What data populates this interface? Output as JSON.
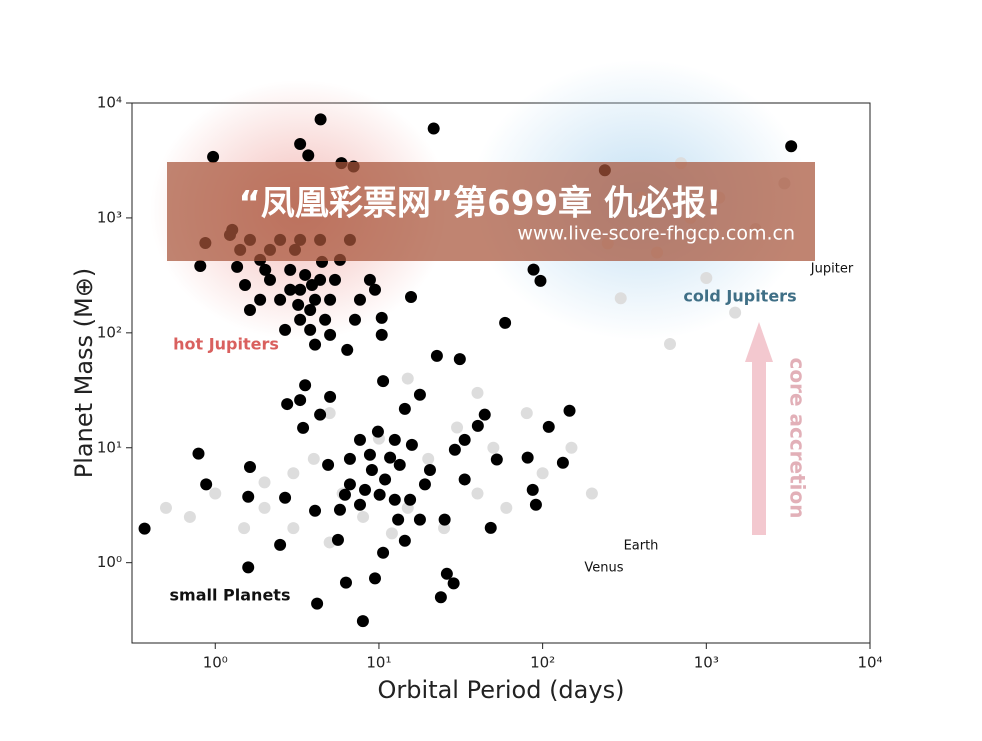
{
  "chart_data": {
    "type": "scatter",
    "log_x": true,
    "log_y": true,
    "x_label": "Orbital Period (days)",
    "y_label": "Planet Mass (M⊕)",
    "xlim": [
      0.31,
      10000
    ],
    "ylim": [
      0.2,
      10000
    ],
    "xticks": [
      {
        "value": 1,
        "label": "10⁰"
      },
      {
        "value": 10,
        "label": "10¹"
      },
      {
        "value": 100,
        "label": "10²"
      },
      {
        "value": 1000,
        "label": "10³"
      },
      {
        "value": 10000,
        "label": "10⁴"
      }
    ],
    "yticks": [
      {
        "value": 1,
        "label": "10⁰"
      },
      {
        "value": 10,
        "label": "10¹"
      },
      {
        "value": 100,
        "label": "10²"
      },
      {
        "value": 1000,
        "label": "10³"
      },
      {
        "value": 10000,
        "label": "10⁴"
      }
    ],
    "series": [
      {
        "color": "#dddddd",
        "x": [
          0.5,
          0.7,
          1,
          1.5,
          2,
          2,
          3,
          3,
          4,
          5,
          6,
          8,
          10,
          12,
          15,
          20,
          25,
          30,
          40,
          50,
          60,
          80,
          100,
          150,
          200,
          5,
          15,
          40,
          300,
          500,
          800,
          1000,
          2000,
          400,
          1500,
          600,
          3000,
          700,
          1200,
          250
        ],
        "values": [
          3,
          2.5,
          4,
          2,
          5,
          3,
          6,
          2,
          8,
          1.5,
          4,
          2.5,
          12,
          1.8,
          3,
          8,
          2,
          15,
          4,
          10,
          3,
          20,
          6,
          10,
          4,
          20,
          40,
          30,
          200,
          500,
          1000,
          300,
          800,
          1500,
          150,
          80,
          2000,
          3000,
          1500,
          600
        ]
      },
      {
        "color": "#000000",
        "x": [
          4.4,
          21.6,
          0.97,
          3.3,
          3.7,
          5.9,
          7.0,
          3300,
          240,
          88,
          97,
          59,
          15.7,
          10.4,
          10.4,
          6.4,
          0.87,
          0.81,
          1.36,
          1.88,
          2.16,
          2.49,
          2.87,
          3.3,
          3.8,
          4.37,
          3.3,
          2.67,
          3.8,
          5.03,
          4.07,
          1.63,
          2.16,
          1.23,
          1.42,
          1.88,
          1.63,
          3.07,
          5.03,
          5.78,
          6.65,
          8.81,
          7.66,
          9.46,
          7.14,
          3.3,
          4.37,
          2.49,
          2.02,
          2.87,
          3.54,
          4.07,
          4.69,
          5.39,
          3.21,
          3.9,
          4.49,
          1.52,
          1.27,
          0.37,
          0.79,
          0.88,
          1.59,
          1.59,
          1.63,
          2.49,
          2.67,
          2.75,
          3.3,
          3.44,
          3.54,
          4.19,
          4.37,
          5.03,
          4.89,
          5.62,
          6.29,
          6.65,
          7.66,
          7.98,
          9.46,
          10.6,
          10.6,
          11.7,
          13.1,
          14.4,
          14.4,
          15.9,
          17.8,
          19.1,
          20.5,
          22.6,
          23.9,
          26.0,
          28.6,
          31.2,
          29.1,
          33.4,
          40.2,
          44.3,
          48.2,
          52.5,
          81,
          87,
          91,
          109,
          133,
          146,
          4.07,
          6.2,
          7.66,
          9.06,
          9.86,
          10.9,
          12.5,
          13.4,
          10.1,
          8.81,
          6.65,
          5.78,
          15.5,
          17.8,
          25.2,
          33.4,
          12.5,
          8.22
        ],
        "values": [
          7200,
          6000,
          3400,
          4400,
          3500,
          3000,
          2800,
          4200,
          2600,
          355,
          283,
          122,
          205,
          96,
          135,
          71,
          605,
          382,
          375,
          431,
          289,
          194,
          353,
          237,
          158,
          289,
          130,
          106,
          106,
          96,
          79,
          644,
          527,
          711,
          527,
          194,
          158,
          527,
          194,
          431,
          644,
          289,
          194,
          237,
          130,
          644,
          644,
          644,
          353,
          237,
          319,
          194,
          130,
          289,
          175,
          261,
          414,
          261,
          787,
          1.98,
          8.9,
          4.8,
          0.91,
          3.75,
          6.8,
          1.43,
          3.67,
          24,
          26,
          14.9,
          35,
          0.44,
          19.4,
          27.7,
          7.1,
          1.58,
          0.67,
          8.0,
          11.7,
          0.31,
          0.73,
          38,
          1.22,
          8.2,
          2.37,
          1.55,
          21.8,
          10.6,
          28.9,
          4.8,
          6.4,
          63,
          0.5,
          0.8,
          0.66,
          59,
          9.6,
          5.3,
          15.5,
          19.4,
          2.01,
          7.9,
          8.2,
          4.3,
          3.19,
          15.2,
          7.4,
          21,
          2.83,
          3.9,
          3.19,
          6.4,
          13.8,
          5.3,
          3.53,
          7.1,
          3.9,
          8.7,
          4.8,
          2.89,
          3.53,
          2.37,
          2.37,
          11.7,
          11.7,
          4.3
        ]
      }
    ],
    "annotations": [
      {
        "text": "hot Jupiters",
        "color": "#d9605e"
      },
      {
        "text": "cold Jupiters",
        "color": "#3f6f86"
      },
      {
        "text": "small Planets",
        "color": "#111111"
      },
      {
        "text": "core accretion",
        "color": "#e2b0b8"
      },
      {
        "text": "Jupiter",
        "color": "#111111"
      },
      {
        "text": "Earth",
        "color": "#111111"
      },
      {
        "text": "Venus",
        "color": "#111111"
      }
    ]
  },
  "watermark": {
    "title": "“凤凰彩票网”第699章 仇必报!",
    "url": "www.live-score-fhgcp.com.cn"
  }
}
